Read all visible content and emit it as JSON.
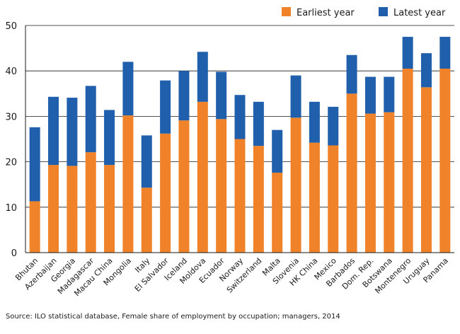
{
  "chart_data": {
    "type": "bar",
    "stacked": true,
    "categories": [
      "Bhutan",
      "Azerbaijan",
      "Georgia",
      "Madagascar",
      "Macau China",
      "Mongolia",
      "Italy",
      "El Salvador",
      "Iceland",
      "Moldova",
      "Ecuador",
      "Norway",
      "Switzerland",
      "Malta",
      "Slovenia",
      "HK China",
      "Mexico",
      "Barbados",
      "Dom. Rep.",
      "Botswana",
      "Montenegro",
      "Uruguay",
      "Panama"
    ],
    "series": [
      {
        "name": "Earliest year",
        "color": "#f0832a",
        "values": [
          11.3,
          19.3,
          19.1,
          22.1,
          19.3,
          30.2,
          14.3,
          26.2,
          29.1,
          33.2,
          29.4,
          25.0,
          23.5,
          17.6,
          29.7,
          24.2,
          23.6,
          35.0,
          30.6,
          30.9,
          40.5,
          36.4,
          40.5
        ]
      },
      {
        "name": "Latest year",
        "color": "#1f5fab",
        "values": [
          16.3,
          15.0,
          15.0,
          14.6,
          12.1,
          11.8,
          11.5,
          11.7,
          10.9,
          11.0,
          10.4,
          9.7,
          9.7,
          9.4,
          9.3,
          9.0,
          8.5,
          8.5,
          8.1,
          7.8,
          7.0,
          7.5,
          7.0
        ]
      }
    ],
    "y_ticks": [
      "0",
      "10",
      "20",
      "30",
      "40",
      "50"
    ],
    "ylim": [
      0,
      50
    ],
    "xlabel": "",
    "ylabel": "",
    "title": "",
    "legend_position": "top-right",
    "grid": "horizontal"
  },
  "source": "Source: ILO statistical database, Female share of employment by occupation; managers, 2014"
}
